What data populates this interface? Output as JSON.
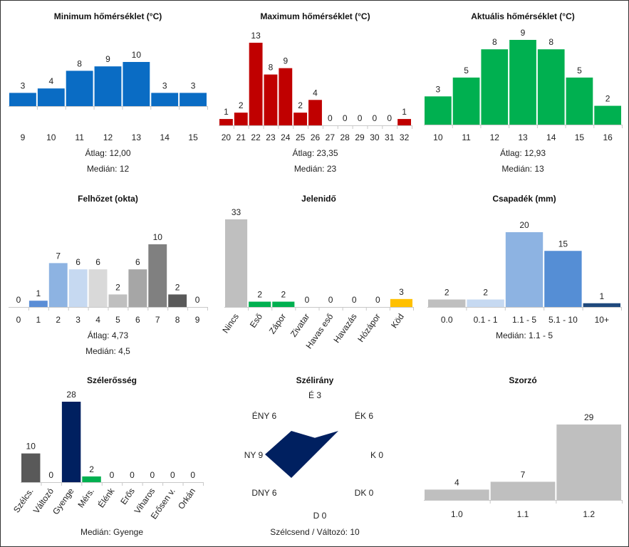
{
  "stat_labels": {
    "avg": "Átlag:",
    "median": "Medián:"
  },
  "chart_data": [
    {
      "id": "min-temp",
      "type": "bar",
      "title": "Minimum hőmérséklet (°C)",
      "categories": [
        "9",
        "10",
        "11",
        "12",
        "13",
        "14",
        "15"
      ],
      "values": [
        3,
        4,
        8,
        9,
        10,
        3,
        3
      ],
      "colors": [
        "#0a6cc4"
      ],
      "ylim": [
        0,
        10
      ],
      "average": "12,00",
      "median": "12"
    },
    {
      "id": "max-temp",
      "type": "bar",
      "title": "Maximum hőmérséklet (°C)",
      "categories": [
        "20",
        "21",
        "22",
        "23",
        "24",
        "25",
        "26",
        "27",
        "28",
        "29",
        "30",
        "31",
        "32"
      ],
      "values": [
        1,
        2,
        13,
        8,
        9,
        2,
        4,
        0,
        0,
        0,
        0,
        0,
        1
      ],
      "colors": [
        "#c00000"
      ],
      "ylim": [
        0,
        13
      ],
      "average": "23,35",
      "median": "23"
    },
    {
      "id": "current-temp",
      "type": "bar",
      "title": "Aktuális hőmérséklet (°C)",
      "categories": [
        "10",
        "11",
        "12",
        "13",
        "14",
        "15",
        "16"
      ],
      "values": [
        3,
        5,
        8,
        9,
        8,
        5,
        2
      ],
      "colors": [
        "#00b050"
      ],
      "ylim": [
        0,
        9
      ],
      "average": "12,93",
      "median": "13"
    },
    {
      "id": "cloud-cover",
      "type": "bar",
      "title": "Felhőzet (okta)",
      "categories": [
        "0",
        "1",
        "2",
        "3",
        "4",
        "5",
        "6",
        "7",
        "8",
        "9"
      ],
      "values": [
        0,
        1,
        7,
        6,
        6,
        2,
        6,
        10,
        2,
        0
      ],
      "colors": [
        "#5b8ed6",
        "#5b8ed6",
        "#8db3e2",
        "#c6d9f1",
        "#d9d9d9",
        "#bfbfbf",
        "#a6a6a6",
        "#808080",
        "#595959",
        "#404040"
      ],
      "ylim": [
        0,
        10
      ],
      "average": "4,73",
      "median": "4,5"
    },
    {
      "id": "present-weather",
      "type": "bar",
      "title": "Jelenidő",
      "categories": [
        "Nincs",
        "Eső",
        "Zápor",
        "Zivatar",
        "Havas eső",
        "Havazás",
        "Hózápor",
        "Köd"
      ],
      "values": [
        33,
        2,
        2,
        0,
        0,
        0,
        0,
        3
      ],
      "colors": [
        "#bfbfbf",
        "#00b050",
        "#00b050",
        "#00b050",
        "#00b050",
        "#00b050",
        "#00b050",
        "#ffc000"
      ],
      "ylim": [
        0,
        33
      ],
      "rotate_labels": true
    },
    {
      "id": "precipitation",
      "type": "bar",
      "title": "Csapadék (mm)",
      "categories": [
        "0.0",
        "0.1 - 1",
        "1.1 - 5",
        "5.1 - 10",
        "10+"
      ],
      "values": [
        2,
        2,
        20,
        15,
        1
      ],
      "colors": [
        "#bfbfbf",
        "#c6d9f1",
        "#8db3e2",
        "#558ed5",
        "#1f497d"
      ],
      "ylim": [
        0,
        20
      ],
      "median": "1.1 - 5"
    },
    {
      "id": "wind-strength",
      "type": "bar",
      "title": "Szélerősség",
      "categories": [
        "Szélcs.",
        "Változó",
        "Gyenge",
        "Mérs.",
        "Élénk",
        "Erős",
        "Viharos",
        "Erősen v.",
        "Orkán"
      ],
      "values": [
        10,
        0,
        28,
        2,
        0,
        0,
        0,
        0,
        0
      ],
      "colors": [
        "#595959",
        "#595959",
        "#002060",
        "#00b050",
        "#00b050",
        "#00b050",
        "#00b050",
        "#00b050",
        "#00b050"
      ],
      "ylim": [
        0,
        28
      ],
      "rotate_labels": true,
      "median": "Gyenge"
    },
    {
      "id": "wind-direction",
      "type": "radar",
      "title": "Szélirány",
      "directions": [
        "É",
        "ÉK",
        "K",
        "DK",
        "D",
        "DNY",
        "NY",
        "ÉNY"
      ],
      "values": [
        3,
        6,
        0,
        0,
        0,
        6,
        9,
        6
      ],
      "colors": [
        "#002060"
      ],
      "rmax": 9,
      "footer": "Szélcsend / Változó: 10"
    },
    {
      "id": "multiplier",
      "type": "bar",
      "title": "Szorzó",
      "categories": [
        "1.0",
        "1.1",
        "1.2"
      ],
      "values": [
        4,
        7,
        29
      ],
      "colors": [
        "#bfbfbf"
      ],
      "ylim": [
        0,
        29
      ]
    }
  ]
}
